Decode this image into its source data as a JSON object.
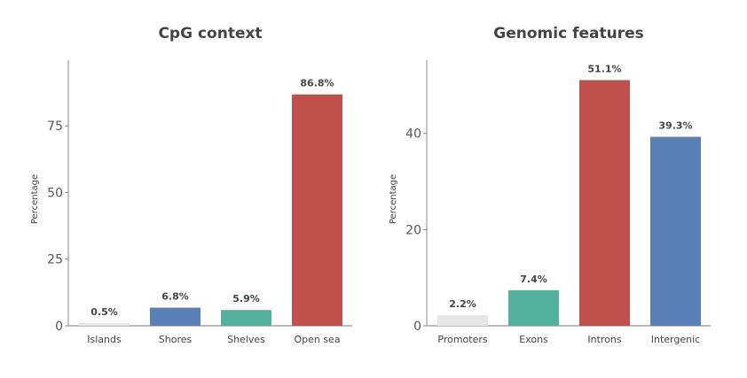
{
  "chart_data": [
    {
      "type": "bar",
      "title": "CpG context",
      "xlabel": "",
      "ylabel": "Percentage",
      "categories": [
        "Islands",
        "Shores",
        "Shelves",
        "Open sea"
      ],
      "values": [
        0.5,
        6.8,
        5.9,
        86.8
      ],
      "data_labels": [
        "0.5%",
        "6.8%",
        "5.9%",
        "86.8%"
      ],
      "colors": [
        "#e6e6e6",
        "#5a80b8",
        "#52b09c",
        "#c0504d"
      ],
      "yticks": [
        0,
        25,
        50,
        75
      ],
      "ylim": [
        0,
        92
      ],
      "grid": false
    },
    {
      "type": "bar",
      "title": "Genomic features",
      "xlabel": "",
      "ylabel": "Percentage",
      "categories": [
        "Promoters",
        "Exons",
        "Introns",
        "Intergenic"
      ],
      "values": [
        2.2,
        7.4,
        51.1,
        39.3
      ],
      "data_labels": [
        "2.2%",
        "7.4%",
        "51.1%",
        "39.3%"
      ],
      "colors": [
        "#e6e6e6",
        "#52b09c",
        "#c0504d",
        "#5a80b8"
      ],
      "yticks": [
        0,
        20,
        40
      ],
      "ylim": [
        0,
        51
      ],
      "grid": false
    }
  ]
}
